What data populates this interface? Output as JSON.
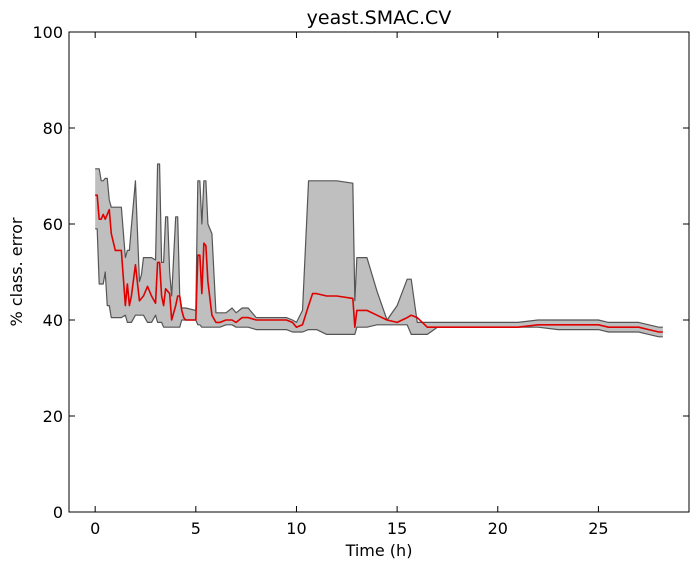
{
  "chart_data": {
    "type": "line",
    "title": "yeast.SMAC.CV",
    "xlabel": "Time (h)",
    "ylabel": "% class. error",
    "xlim": [
      -1.3,
      29.5
    ],
    "ylim": [
      0,
      100
    ],
    "xticks": [
      0,
      5,
      10,
      15,
      20,
      25
    ],
    "yticks": [
      0,
      20,
      40,
      60,
      80,
      100
    ],
    "grid": false,
    "colors": {
      "mean_line": "#e00000",
      "band_fill": "#bfbfbf",
      "band_edge": "#555555"
    },
    "series": [
      {
        "type": "line",
        "x": [
          0,
          0.1,
          0.2,
          0.3,
          0.4,
          0.5,
          0.6,
          0.7,
          0.8,
          1.0,
          1.3,
          1.5,
          1.6,
          1.7,
          1.8,
          2.0,
          2.2,
          2.3,
          2.4,
          2.6,
          2.8,
          3.0,
          3.1,
          3.2,
          3.3,
          3.4,
          3.5,
          3.6,
          3.7,
          3.8,
          4.0,
          4.1,
          4.2,
          4.3,
          4.4,
          4.5,
          5.0,
          5.1,
          5.2,
          5.3,
          5.4,
          5.5,
          5.6,
          5.8,
          6.0,
          6.2,
          6.5,
          6.8,
          7.0,
          7.3,
          7.6,
          8.0,
          9.5,
          9.8,
          10.0,
          10.3,
          10.6,
          10.8,
          11.0,
          11.5,
          12.0,
          12.8,
          12.9,
          13.0,
          13.5,
          14.0,
          14.5,
          15.0,
          15.5,
          15.7,
          16.0,
          16.5,
          17.0,
          18.0,
          19.0,
          20.0,
          21.0,
          22.0,
          23.0,
          24.0,
          25.0,
          25.5,
          26.0,
          26.5,
          27.0,
          27.5,
          28.0,
          28.2
        ],
        "y": [
          66,
          66,
          61,
          61,
          62,
          61,
          62,
          63,
          58,
          54.5,
          54.5,
          43,
          47.5,
          43,
          45,
          51.5,
          44,
          44.5,
          45,
          47,
          45,
          43.5,
          52,
          52,
          45,
          43,
          46.5,
          46,
          45.5,
          40,
          43,
          45,
          45,
          42,
          40.5,
          40,
          40,
          53.5,
          53.5,
          45.5,
          56,
          55.5,
          48,
          41,
          39.5,
          39.5,
          40,
          40,
          39.5,
          40.5,
          40.5,
          40,
          40,
          39.5,
          38.5,
          39,
          43,
          45.5,
          45.5,
          45,
          45,
          44.5,
          38.5,
          42,
          42,
          41,
          40,
          39.5,
          40.5,
          41,
          40.5,
          38.5,
          38.5,
          38.5,
          38.5,
          38.5,
          38.5,
          39,
          39,
          39,
          39,
          38.5,
          38.5,
          38.5,
          38.5,
          38,
          37.5,
          37.5
        ]
      },
      {
        "type": "band",
        "x": [
          0,
          0.1,
          0.2,
          0.3,
          0.4,
          0.5,
          0.6,
          0.7,
          0.8,
          1.0,
          1.3,
          1.5,
          1.6,
          1.7,
          1.8,
          2.0,
          2.2,
          2.3,
          2.4,
          2.6,
          2.8,
          3.0,
          3.1,
          3.2,
          3.3,
          3.4,
          3.5,
          3.6,
          3.7,
          3.8,
          4.0,
          4.1,
          4.2,
          4.3,
          4.4,
          4.5,
          5.0,
          5.1,
          5.2,
          5.3,
          5.4,
          5.5,
          5.6,
          5.8,
          6.0,
          6.2,
          6.5,
          6.8,
          7.0,
          7.3,
          7.6,
          8.0,
          9.5,
          9.8,
          10.0,
          10.3,
          10.6,
          10.8,
          11.0,
          11.5,
          12.0,
          12.8,
          12.9,
          13.0,
          13.5,
          14.0,
          14.5,
          15.0,
          15.5,
          15.7,
          16.0,
          16.5,
          17.0,
          18.0,
          19.0,
          20.0,
          21.0,
          22.0,
          23.0,
          24.0,
          25.0,
          25.5,
          26.0,
          26.5,
          27.0,
          27.5,
          28.0,
          28.2
        ],
        "upper": [
          71.5,
          71.5,
          71.5,
          69,
          69,
          69.5,
          69.5,
          65,
          63.5,
          63.5,
          63.5,
          53,
          54.5,
          54.5,
          59.5,
          69,
          48,
          49.5,
          53,
          53,
          53,
          52.5,
          72.5,
          72.5,
          52,
          52,
          61.5,
          61.5,
          50,
          45,
          61.5,
          61.5,
          45,
          42.5,
          42.5,
          42.5,
          42,
          69,
          69,
          60,
          69,
          69,
          60,
          58,
          41.5,
          41.5,
          41.5,
          42.5,
          41.5,
          42.5,
          42.5,
          40.5,
          40.5,
          40,
          39.5,
          42,
          69,
          69,
          69,
          69,
          69,
          68.5,
          44,
          53,
          53,
          46,
          40,
          43,
          48.5,
          48.5,
          39.5,
          39.5,
          39.5,
          39.5,
          39.5,
          39.5,
          39.5,
          40,
          40,
          40,
          40,
          39.5,
          39.5,
          39.5,
          39.5,
          39,
          38.5,
          38.5
        ],
        "lower": [
          59,
          59,
          47.5,
          47.5,
          47.5,
          50,
          43,
          43,
          40.5,
          40.5,
          40.5,
          41,
          39.5,
          39.5,
          39.5,
          41,
          41,
          41,
          41,
          39.5,
          39.5,
          41,
          39.5,
          39.5,
          39.5,
          38.5,
          38.5,
          38.5,
          38.5,
          38.5,
          38.5,
          38.5,
          38.5,
          40,
          40,
          40,
          40,
          39,
          39,
          38.5,
          38.5,
          38.5,
          38.5,
          38.5,
          38.5,
          38.5,
          39,
          39,
          38.5,
          38.5,
          38.5,
          38,
          38,
          37.5,
          37.5,
          37.5,
          38,
          38,
          38,
          37,
          37,
          37,
          37,
          38.5,
          38.5,
          39,
          39,
          39,
          39,
          37,
          37,
          37,
          38.5,
          38.5,
          38.5,
          38.5,
          38.5,
          38.5,
          38,
          38,
          38,
          37.5,
          37.5,
          37.5,
          37.5,
          37,
          36.5,
          36.5
        ]
      }
    ]
  }
}
